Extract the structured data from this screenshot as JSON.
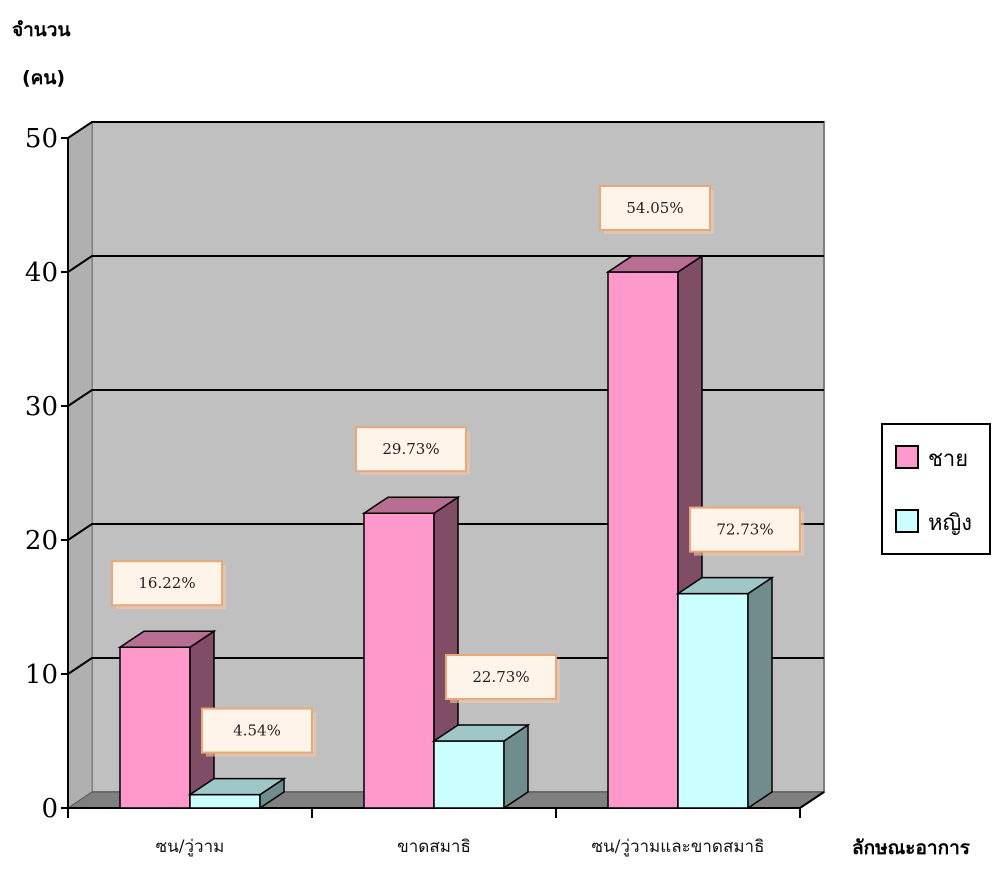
{
  "chart_data": {
    "type": "bar",
    "ylabel_line1": "จำนวน",
    "ylabel_line2": "(คน)",
    "xlabel": "ลักษณะอาการ",
    "categories": [
      "ซน/วู่วาม",
      "ขาดสมาธิ",
      "ซน/วู่วามและขาดสมาธิ"
    ],
    "series": [
      {
        "name": "ชาย",
        "values": [
          12,
          22,
          40
        ],
        "labels": [
          "16.22%",
          "29.73%",
          "54.05%"
        ],
        "color": "#ff99cc"
      },
      {
        "name": "หญิง",
        "values": [
          1,
          5,
          16
        ],
        "labels": [
          "4.54%",
          "22.73%",
          "72.73%"
        ],
        "color": "#ccffff"
      }
    ],
    "ylim": [
      0,
      50
    ],
    "yticks": [
      0,
      10,
      20,
      30,
      40,
      50
    ],
    "grid": true,
    "legend_position": "right",
    "style": "3d-clustered-bar"
  }
}
